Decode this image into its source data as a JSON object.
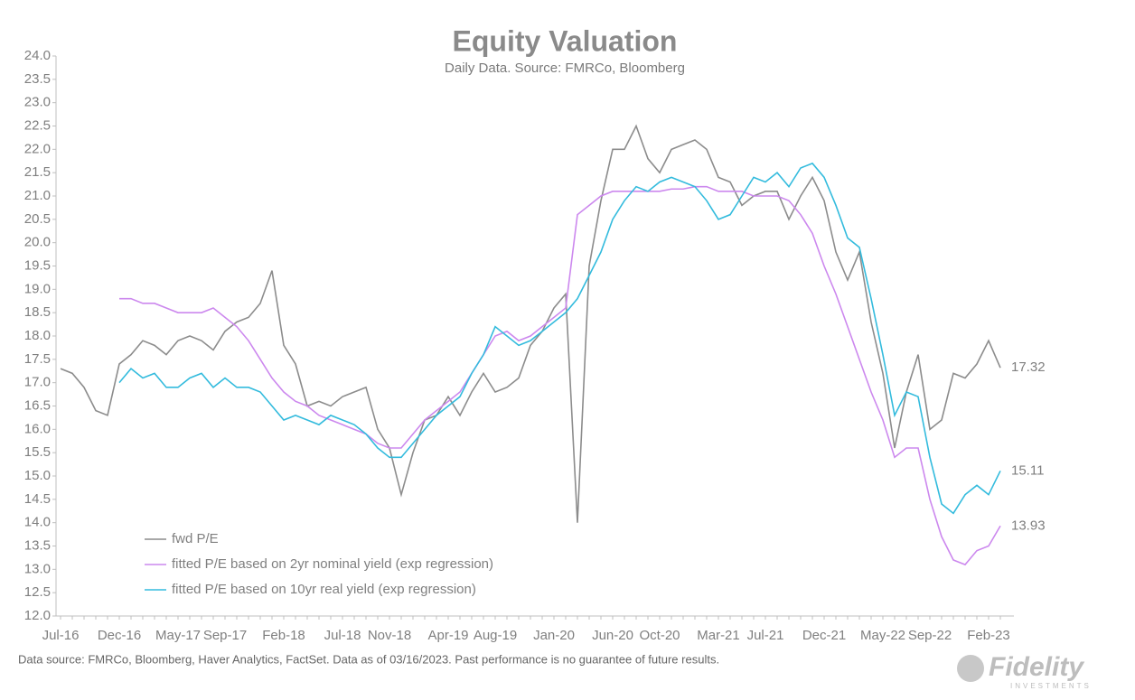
{
  "chart_data": {
    "type": "line",
    "title": "Equity Valuation",
    "subtitle": "Daily Data. Source: FMRCo, Bloomberg",
    "footnote": "Data source: FMRCo, Bloomberg, Haver Analytics, FactSet. Data as of 03/16/2023. Past performance is no guarantee of future results.",
    "brand": "Fidelity",
    "brand_sub": "INVESTMENTS",
    "categories": [
      "Jul-16",
      null,
      null,
      null,
      null,
      "Dec-16",
      null,
      null,
      null,
      null,
      "May-17",
      null,
      null,
      null,
      "Sep-17",
      null,
      null,
      null,
      null,
      "Feb-18",
      null,
      null,
      null,
      null,
      "Jul-18",
      null,
      null,
      null,
      "Nov-18",
      null,
      null,
      null,
      null,
      "Apr-19",
      null,
      null,
      null,
      "Aug-19",
      null,
      null,
      null,
      null,
      "Jan-20",
      null,
      null,
      null,
      null,
      "Jun-20",
      null,
      null,
      null,
      "Oct-20",
      null,
      null,
      null,
      null,
      "Mar-21",
      null,
      null,
      null,
      "Jul-21",
      null,
      null,
      null,
      null,
      "Dec-21",
      null,
      null,
      null,
      null,
      "May-22",
      null,
      null,
      null,
      "Sep-22",
      null,
      null,
      null,
      null,
      "Feb-23",
      null
    ],
    "series": [
      {
        "name": "fwd P/E",
        "color": "#8c8c8c",
        "values": [
          17.3,
          17.2,
          16.9,
          16.4,
          16.3,
          17.4,
          17.6,
          17.9,
          17.8,
          17.6,
          17.9,
          18.0,
          17.9,
          17.7,
          18.1,
          18.3,
          18.4,
          18.7,
          19.4,
          17.8,
          17.4,
          16.5,
          16.6,
          16.5,
          16.7,
          16.8,
          16.9,
          16.0,
          15.6,
          14.6,
          15.5,
          16.2,
          16.3,
          16.7,
          16.3,
          16.8,
          17.2,
          16.8,
          16.9,
          17.1,
          17.8,
          18.1,
          18.6,
          18.9,
          14.0,
          19.5,
          20.9,
          22.0,
          22.0,
          22.5,
          21.8,
          21.5,
          22.0,
          22.1,
          22.2,
          22.0,
          21.4,
          21.3,
          20.8,
          21.0,
          21.1,
          21.1,
          20.5,
          21.0,
          21.4,
          20.9,
          19.8,
          19.2,
          19.8,
          18.3,
          17.2,
          15.6,
          16.8,
          17.6,
          16.0,
          16.2,
          17.2,
          17.1,
          17.4,
          17.9,
          17.32
        ]
      },
      {
        "name": "fitted P/E based on 2yr nominal yield (exp regression)",
        "color": "#cc88ee",
        "values": [
          null,
          null,
          null,
          null,
          null,
          18.8,
          18.8,
          18.7,
          18.7,
          18.6,
          18.5,
          18.5,
          18.5,
          18.6,
          18.4,
          18.2,
          17.9,
          17.5,
          17.1,
          16.8,
          16.6,
          16.5,
          16.3,
          16.2,
          16.1,
          16.0,
          15.9,
          15.7,
          15.6,
          15.6,
          15.9,
          16.2,
          16.4,
          16.6,
          16.8,
          17.2,
          17.6,
          18.0,
          18.1,
          17.9,
          18.0,
          18.2,
          18.4,
          18.6,
          20.6,
          20.8,
          21.0,
          21.1,
          21.1,
          21.1,
          21.1,
          21.1,
          21.15,
          21.15,
          21.2,
          21.2,
          21.1,
          21.1,
          21.1,
          21.0,
          21.0,
          21.0,
          20.9,
          20.6,
          20.2,
          19.5,
          18.9,
          18.2,
          17.5,
          16.8,
          16.2,
          15.4,
          15.6,
          15.6,
          14.5,
          13.7,
          13.2,
          13.1,
          13.4,
          13.5,
          13.93
        ]
      },
      {
        "name": "fitted P/E based on 10yr real yield (exp regression)",
        "color": "#33bbdd",
        "values": [
          null,
          null,
          null,
          null,
          null,
          17.0,
          17.3,
          17.1,
          17.2,
          16.9,
          16.9,
          17.1,
          17.2,
          16.9,
          17.1,
          16.9,
          16.9,
          16.8,
          16.5,
          16.2,
          16.3,
          16.2,
          16.1,
          16.3,
          16.2,
          16.1,
          15.9,
          15.6,
          15.4,
          15.4,
          15.7,
          16.0,
          16.3,
          16.5,
          16.7,
          17.2,
          17.6,
          18.2,
          18.0,
          17.8,
          17.9,
          18.1,
          18.3,
          18.5,
          18.8,
          19.3,
          19.8,
          20.5,
          20.9,
          21.2,
          21.1,
          21.3,
          21.4,
          21.3,
          21.2,
          20.9,
          20.5,
          20.6,
          21.0,
          21.4,
          21.3,
          21.5,
          21.2,
          21.6,
          21.7,
          21.4,
          20.8,
          20.1,
          19.9,
          18.8,
          17.6,
          16.3,
          16.8,
          16.7,
          15.4,
          14.4,
          14.2,
          14.6,
          14.8,
          14.6,
          15.11
        ]
      }
    ],
    "ylim": [
      12,
      24
    ],
    "yticks": [
      {
        "value": 12,
        "label": "12.0"
      },
      12.5,
      {
        "value": 13,
        "label": "13.0"
      },
      13.5,
      {
        "value": 14,
        "label": "14.0"
      },
      14.5,
      {
        "value": 15,
        "label": "15.0"
      },
      15.5,
      {
        "value": 16,
        "label": "16.0"
      },
      16.5,
      {
        "value": 17,
        "label": "17.0"
      },
      17.5,
      {
        "value": 18,
        "label": "18.0"
      },
      18.5,
      {
        "value": 19,
        "label": "19.0"
      },
      19.5,
      {
        "value": 20,
        "label": "20.0"
      },
      20.5,
      {
        "value": 21,
        "label": "21.0"
      },
      21.5,
      {
        "value": 22,
        "label": "22.0"
      },
      22.5,
      {
        "value": 23,
        "label": "23.0"
      },
      23.5,
      {
        "value": 24,
        "label": "24.0"
      }
    ],
    "grid": false,
    "legend": "lower left"
  }
}
